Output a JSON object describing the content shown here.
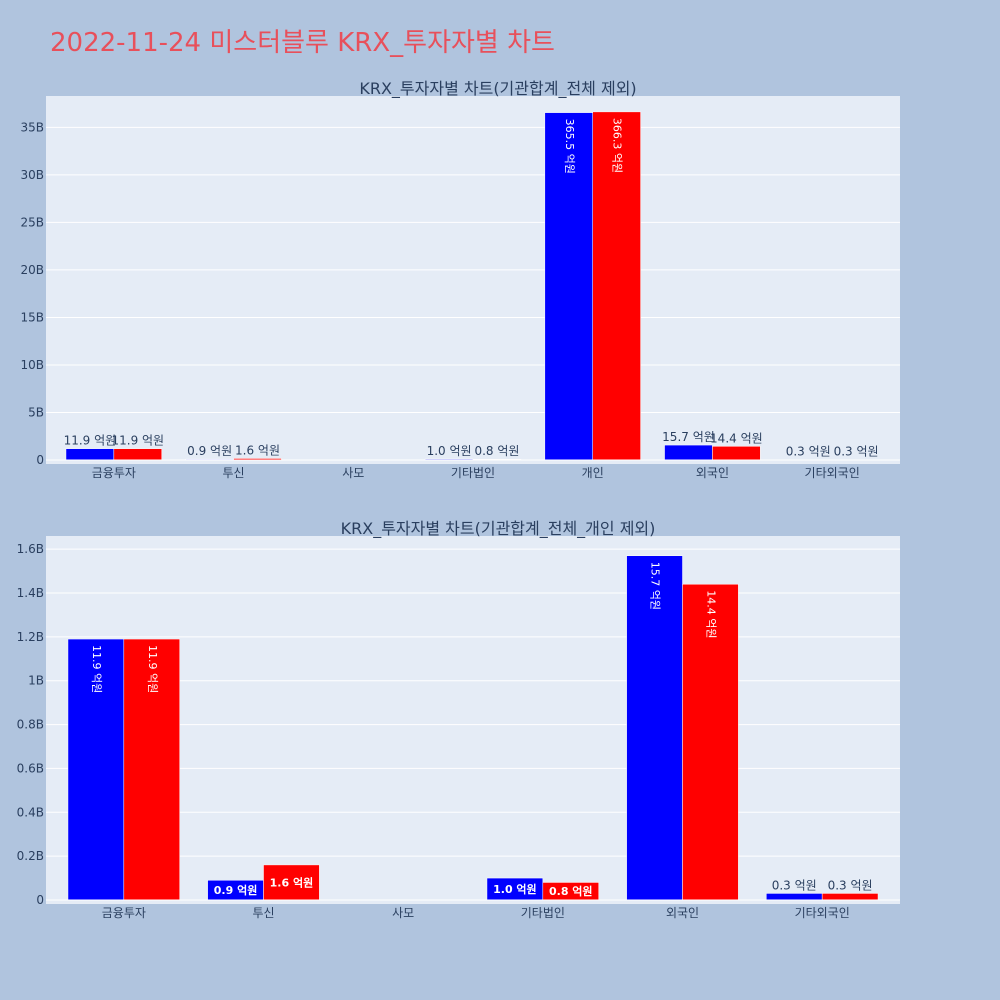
{
  "page_title": "2022-11-24 미스터블루 KRX_투자자별 차트",
  "colors": {
    "series_a": "#0000ff",
    "series_b": "#ff0000",
    "title": "#e8505b"
  },
  "chart_data": [
    {
      "type": "bar",
      "title": "KRX_투자자별 차트(기관합계_전체 제외)",
      "categories": [
        "금융투자",
        "투신",
        "사모",
        "기타법인",
        "개인",
        "외국인",
        "기타외국인"
      ],
      "series": [
        {
          "values": [
            1190000000,
            90000000,
            0,
            100000000,
            36550000000,
            1570000000,
            30000000
          ],
          "labels": [
            "11.9 억원",
            "0.9 억원",
            "",
            "1.0 억원",
            "365.5 억원",
            "15.7 억원",
            "0.3 억원"
          ]
        },
        {
          "values": [
            1190000000,
            160000000,
            0,
            80000000,
            36630000000,
            1440000000,
            30000000
          ],
          "labels": [
            "11.9 억원",
            "1.6 억원",
            "",
            "0.8 억원",
            "366.3 억원",
            "14.4 억원",
            "0.3 억원"
          ]
        }
      ],
      "ylim": [
        0,
        38300000000
      ],
      "yticks": [
        0,
        5000000000,
        10000000000,
        15000000000,
        20000000000,
        25000000000,
        30000000000,
        35000000000
      ],
      "ytick_labels": [
        "0",
        "5B",
        "10B",
        "15B",
        "20B",
        "25B",
        "30B",
        "35B"
      ],
      "grid": true
    },
    {
      "type": "bar",
      "title": "KRX_투자자별 차트(기관합계_전체_개인 제외)",
      "categories": [
        "금융투자",
        "투신",
        "사모",
        "기타법인",
        "외국인",
        "기타외국인"
      ],
      "series": [
        {
          "values": [
            1190000000,
            90000000,
            0,
            100000000,
            1570000000,
            30000000
          ],
          "labels": [
            "11.9 억원",
            "0.9 억원",
            "",
            "1.0 억원",
            "15.7 억원",
            "0.3 억원"
          ]
        },
        {
          "values": [
            1190000000,
            160000000,
            0,
            80000000,
            1440000000,
            30000000
          ],
          "labels": [
            "11.9 억원",
            "1.6 억원",
            "",
            "0.8 억원",
            "14.4 억원",
            "0.3 억원"
          ]
        }
      ],
      "ylim": [
        0,
        1660000000
      ],
      "yticks": [
        0,
        200000000,
        400000000,
        600000000,
        800000000,
        1000000000,
        1200000000,
        1400000000,
        1600000000
      ],
      "ytick_labels": [
        "0",
        "0.2B",
        "0.4B",
        "0.6B",
        "0.8B",
        "1B",
        "1.2B",
        "1.4B",
        "1.6B"
      ],
      "grid": true
    }
  ]
}
